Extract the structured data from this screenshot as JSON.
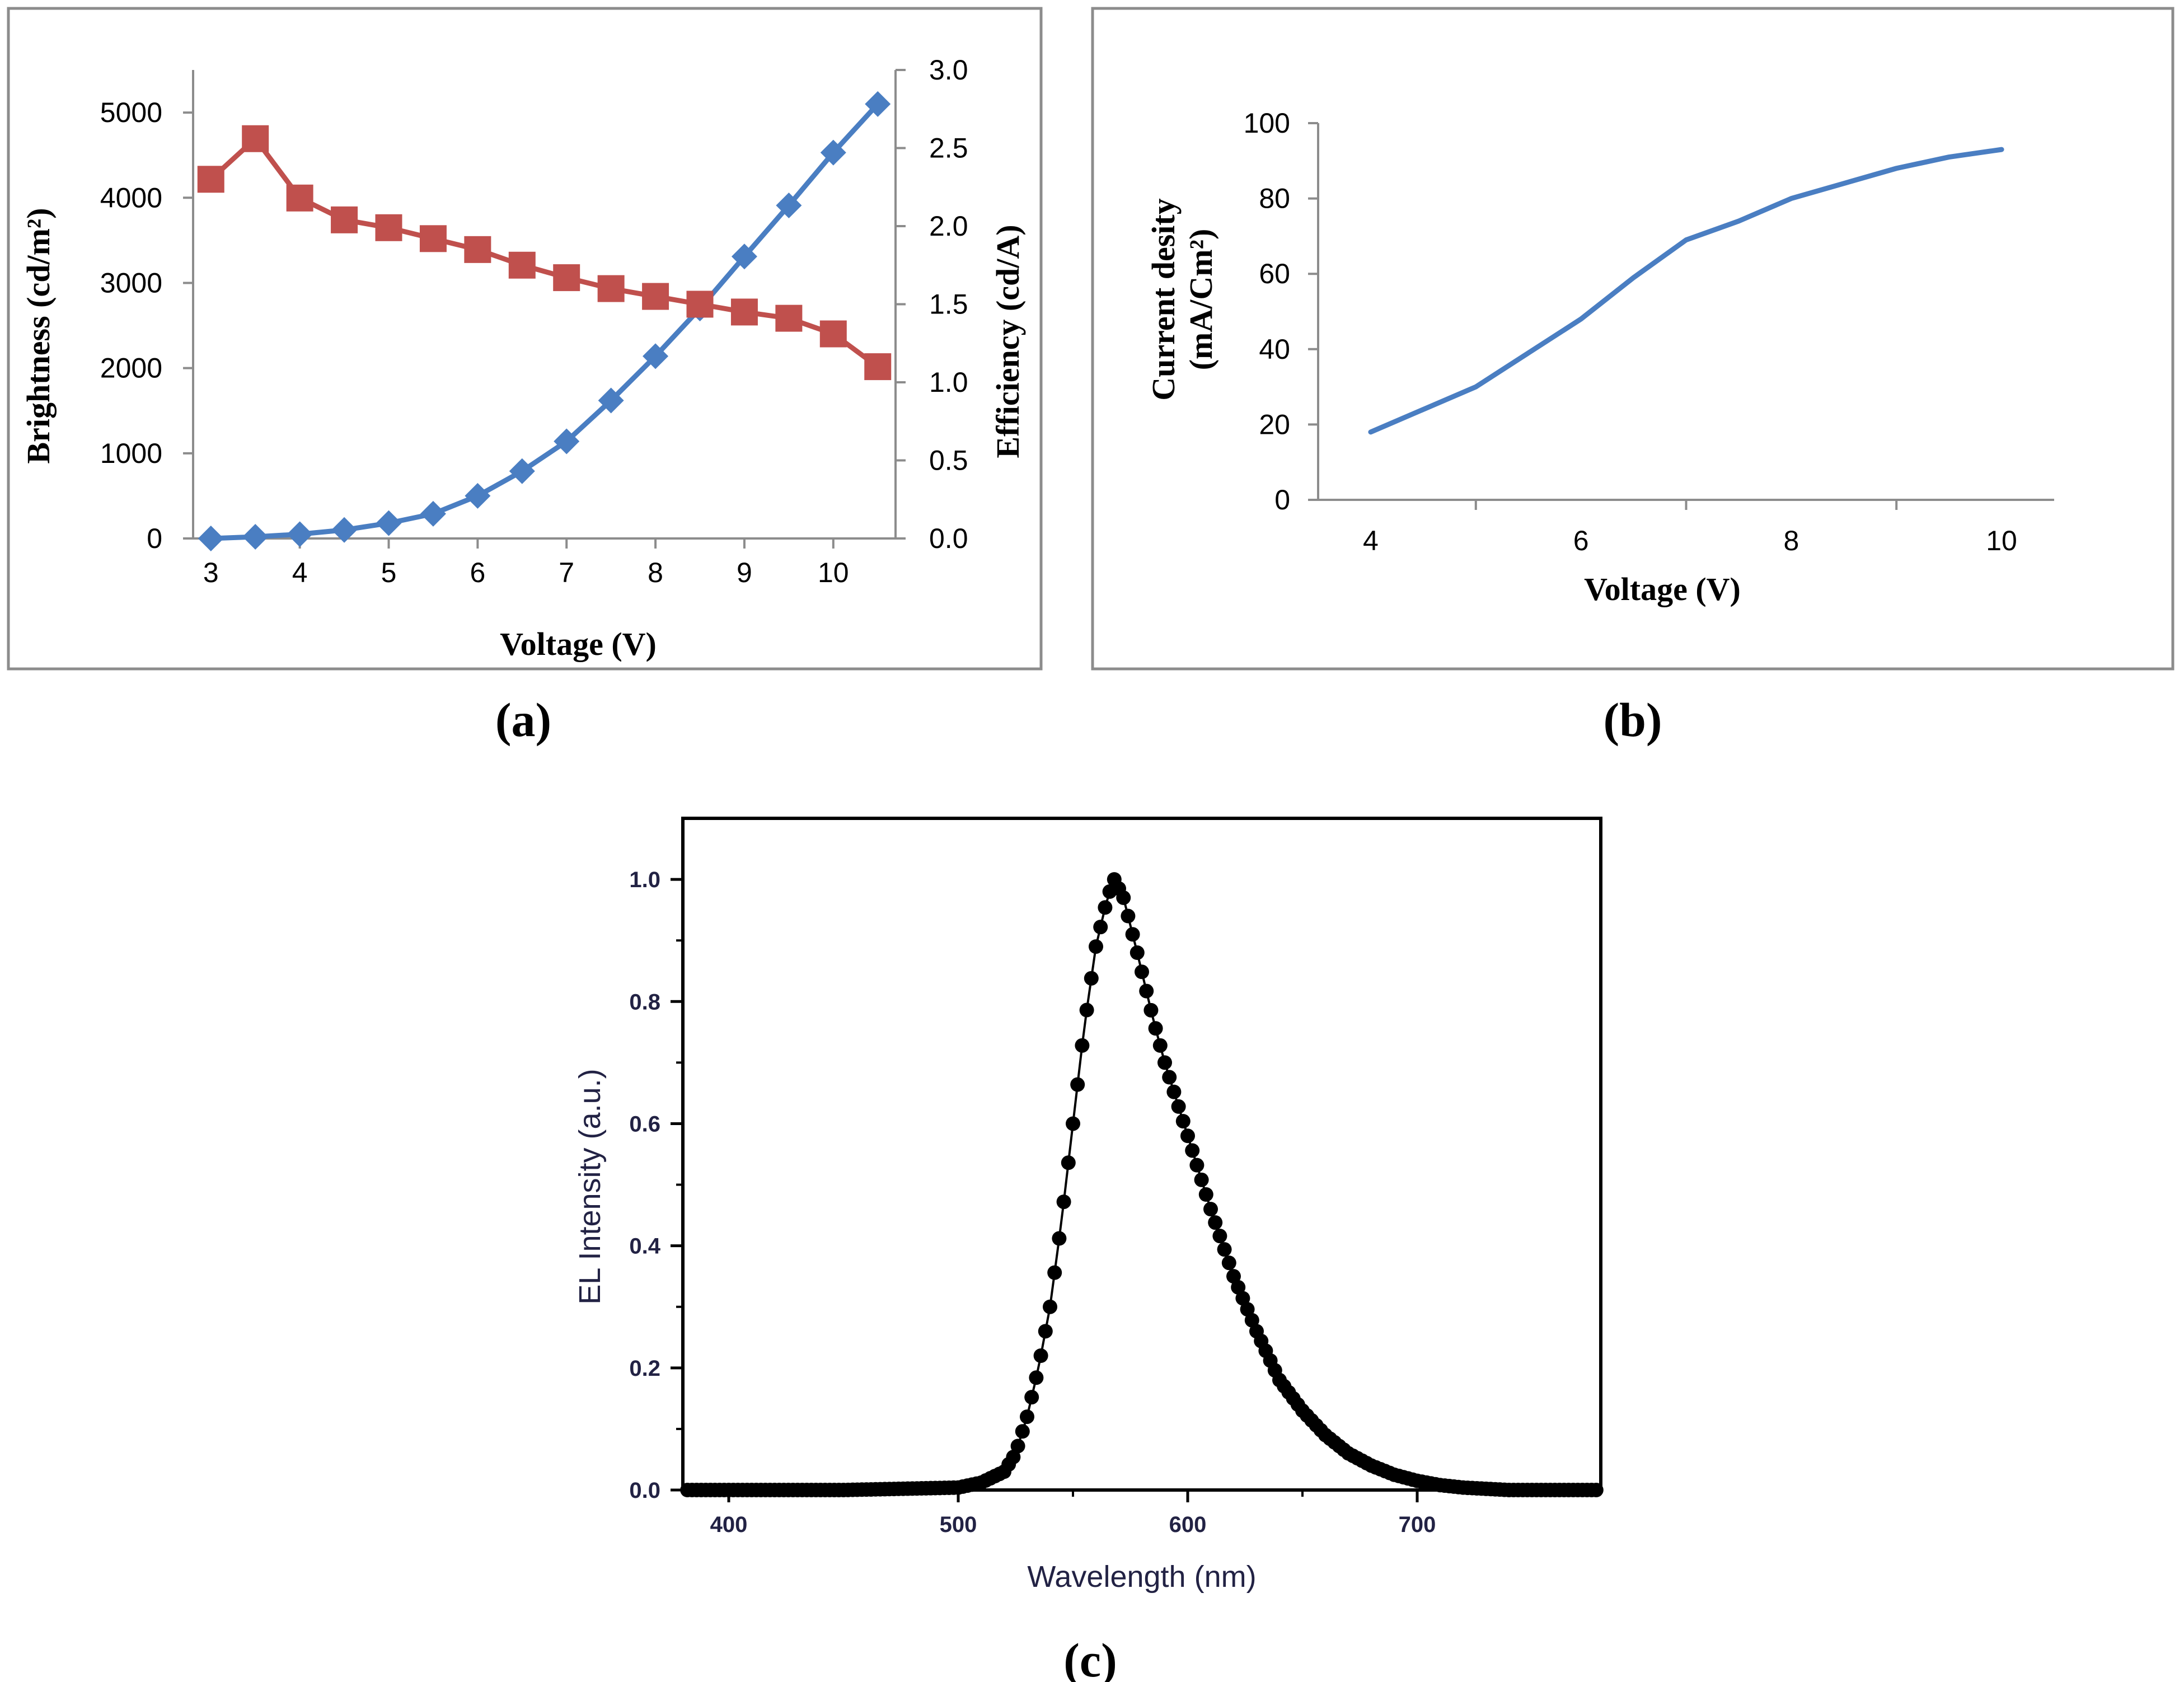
{
  "chart_data": [
    {
      "type": "line",
      "panel_label": "(a)",
      "xlabel": "Voltage (V)",
      "ylabel": "Brightness (cd/m²)",
      "y2label": "Efficiency (cd/A)",
      "xlim": [
        2.8,
        10.7
      ],
      "ylim": [
        0,
        5500
      ],
      "y2lim": [
        0,
        3.0
      ],
      "x_ticks": [
        "3",
        "4",
        "5",
        "6",
        "7",
        "8",
        "9",
        "10"
      ],
      "y_ticks": [
        "0",
        "1000",
        "2000",
        "3000",
        "4000",
        "5000"
      ],
      "y2_ticks": [
        "0.0",
        "0.5",
        "1.0",
        "1.5",
        "2.0",
        "2.5",
        "3.0"
      ],
      "grid": false,
      "series": [
        {
          "axis": "left",
          "marker": "diamond",
          "color": "#4A7EC2",
          "x": [
            3,
            3.5,
            4,
            4.5,
            5,
            5.5,
            6,
            6.5,
            7,
            7.5,
            8,
            8.5,
            9,
            9.5,
            10,
            10.5
          ],
          "y": [
            0,
            20,
            50,
            100,
            180,
            290,
            500,
            790,
            1140,
            1620,
            2140,
            2700,
            3310,
            3910,
            4530,
            5100
          ]
        },
        {
          "axis": "right",
          "marker": "square",
          "color": "#C0504D",
          "x": [
            3,
            3.5,
            4,
            4.5,
            5,
            5.5,
            6,
            6.5,
            7,
            7.5,
            8,
            8.5,
            9,
            9.5,
            10,
            10.5
          ],
          "y": [
            2.3,
            2.56,
            2.18,
            2.04,
            1.99,
            1.92,
            1.85,
            1.75,
            1.67,
            1.6,
            1.55,
            1.5,
            1.45,
            1.41,
            1.31,
            1.1
          ]
        }
      ]
    },
    {
      "type": "line",
      "panel_label": "(b)",
      "xlabel": "Voltage (V)",
      "ylabel_line1": "Current desity",
      "ylabel_line2": "(mA/Cm²)",
      "xlim": [
        3.5,
        10.5
      ],
      "ylim": [
        0,
        100
      ],
      "x_ticks": [
        "4",
        "6",
        "8",
        "10"
      ],
      "y_ticks": [
        "0",
        "20",
        "40",
        "60",
        "80",
        "100"
      ],
      "grid": false,
      "series": [
        {
          "color": "#4A7EC2",
          "x": [
            4,
            4.5,
            5,
            5.5,
            6,
            6.5,
            7,
            7.5,
            8,
            8.5,
            9,
            9.5,
            10
          ],
          "y": [
            18,
            24,
            30,
            39,
            48,
            59,
            69,
            74,
            80,
            84,
            88,
            91,
            93
          ]
        }
      ]
    },
    {
      "type": "scatter",
      "panel_label": "(c)",
      "xlabel": "Wavelength (nm)",
      "ylabel": "EL Intensity (a.u.)",
      "xlim": [
        380,
        780
      ],
      "ylim": [
        0,
        1.1
      ],
      "x_ticks": [
        "400",
        "500",
        "600",
        "700"
      ],
      "y_ticks": [
        "0.0",
        "0.2",
        "0.4",
        "0.6",
        "0.8",
        "1.0"
      ],
      "grid": false,
      "peak_nm": 568,
      "series": [
        {
          "color": "#000000",
          "x": [
            380,
            400,
            450,
            500,
            510,
            520,
            525,
            530,
            535,
            540,
            545,
            550,
            555,
            560,
            565,
            568,
            572,
            578,
            585,
            590,
            600,
            610,
            620,
            630,
            640,
            650,
            660,
            670,
            680,
            690,
            700,
            710,
            720,
            740,
            760,
            780
          ],
          "y": [
            0.0,
            0.0,
            0.0,
            0.004,
            0.012,
            0.03,
            0.06,
            0.12,
            0.2,
            0.3,
            0.44,
            0.6,
            0.76,
            0.89,
            0.97,
            1.0,
            0.97,
            0.88,
            0.77,
            0.7,
            0.58,
            0.46,
            0.35,
            0.26,
            0.18,
            0.13,
            0.09,
            0.06,
            0.04,
            0.025,
            0.015,
            0.008,
            0.004,
            0.0,
            0.0,
            0.0
          ]
        }
      ]
    }
  ]
}
